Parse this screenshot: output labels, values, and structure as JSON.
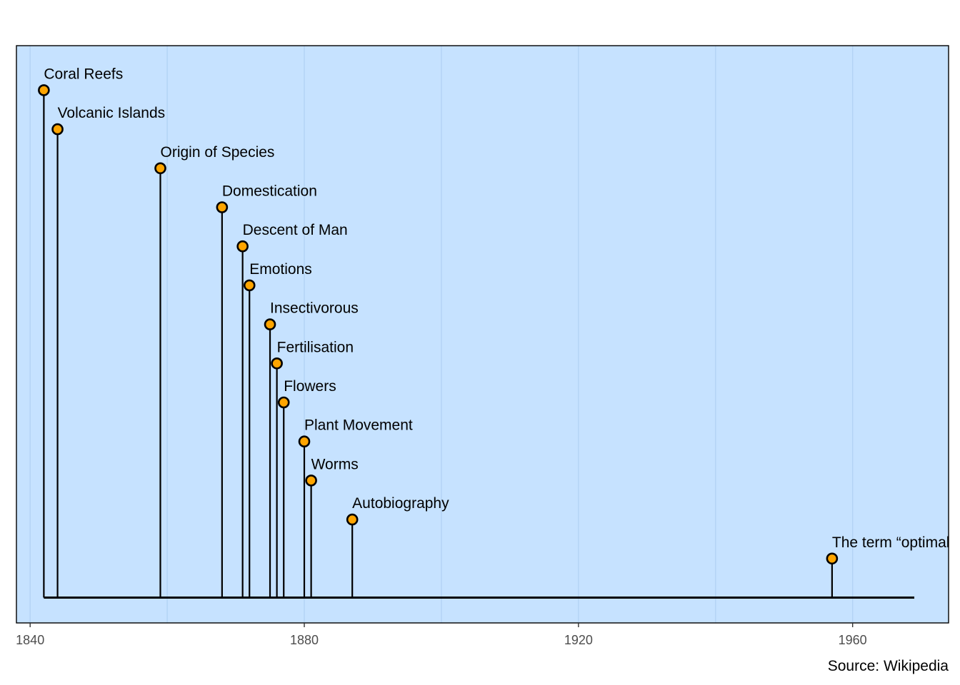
{
  "chart_data": {
    "type": "timeline",
    "caption": "Source: Wikipedia",
    "xlim": [
      1838,
      1974
    ],
    "x_ticks": [
      1840,
      1880,
      1920,
      1960
    ],
    "x_minor_grid": [
      1860,
      1900,
      1940
    ],
    "baseline_range": [
      1842,
      1969
    ],
    "events": [
      {
        "label": "Coral Reefs",
        "year": 1842,
        "level": 13
      },
      {
        "label": "Volcanic Islands",
        "year": 1844,
        "level": 12
      },
      {
        "label": "Origin of Species",
        "year": 1859,
        "level": 11
      },
      {
        "label": "Domestication",
        "year": 1868,
        "level": 10
      },
      {
        "label": "Descent of Man",
        "year": 1871,
        "level": 9
      },
      {
        "label": "Emotions",
        "year": 1872,
        "level": 8
      },
      {
        "label": "Insectivorous",
        "year": 1875,
        "level": 7
      },
      {
        "label": "Fertilisation",
        "year": 1876,
        "level": 6
      },
      {
        "label": "Flowers",
        "year": 1877,
        "level": 5
      },
      {
        "label": "Plant Movement",
        "year": 1880,
        "level": 4
      },
      {
        "label": "Worms",
        "year": 1881,
        "level": 3
      },
      {
        "label": "Autobiography",
        "year": 1887,
        "level": 2
      },
      {
        "label": "The term “optimal foraging”",
        "year": 1957,
        "level": 1
      }
    ],
    "colors": {
      "panel_background": "#c6e2ff",
      "grid": "#b3d3f5",
      "point_fill": "#ffa500",
      "line": "#000000"
    },
    "grid": true,
    "legend": "none"
  }
}
